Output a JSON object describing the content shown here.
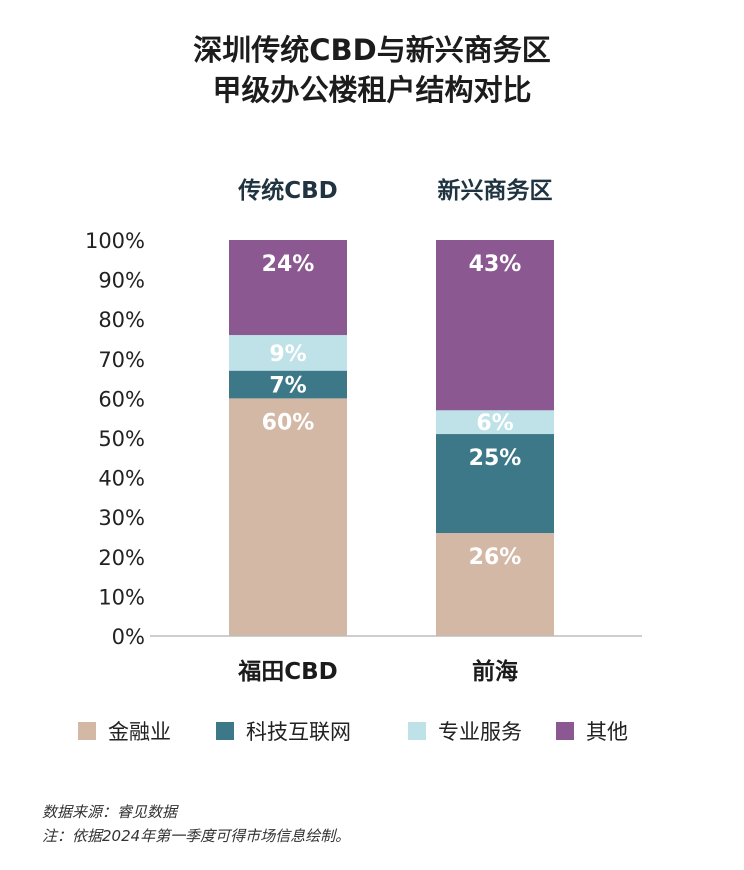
{
  "title_line1": "深圳传统CBD与新兴商务区",
  "title_line2": "甲级办公楼租户结构对比",
  "chart_data": {
    "type": "bar",
    "stacked": true,
    "groups": [
      "传统CBD",
      "新兴商务区"
    ],
    "categories": [
      "福田CBD",
      "前海"
    ],
    "yticks": [
      "0%",
      "10%",
      "20%",
      "30%",
      "40%",
      "50%",
      "60%",
      "70%",
      "80%",
      "90%",
      "100%"
    ],
    "ylim": [
      0,
      100
    ],
    "series": [
      {
        "name": "金融业",
        "color": "#d3b8a5",
        "text_color": "#ffffff",
        "values": [
          60,
          26
        ],
        "labels": [
          "60%",
          "26%"
        ]
      },
      {
        "name": "科技互联网",
        "color": "#3d7889",
        "text_color": "#ffffff",
        "values": [
          7,
          25
        ],
        "labels": [
          "7%",
          "25%"
        ]
      },
      {
        "name": "专业服务",
        "color": "#bfe1e8",
        "text_color": "#ffffff",
        "values": [
          9,
          6
        ],
        "labels": [
          "9%",
          "6%"
        ]
      },
      {
        "name": "其他",
        "color": "#8c5891",
        "text_color": "#ffffff",
        "values": [
          24,
          43
        ],
        "labels": [
          "24%",
          "43%"
        ]
      }
    ]
  },
  "footer": {
    "source": "数据来源：睿见数据",
    "note": "注：依据2024年第一季度可得市场信息绘制。"
  }
}
